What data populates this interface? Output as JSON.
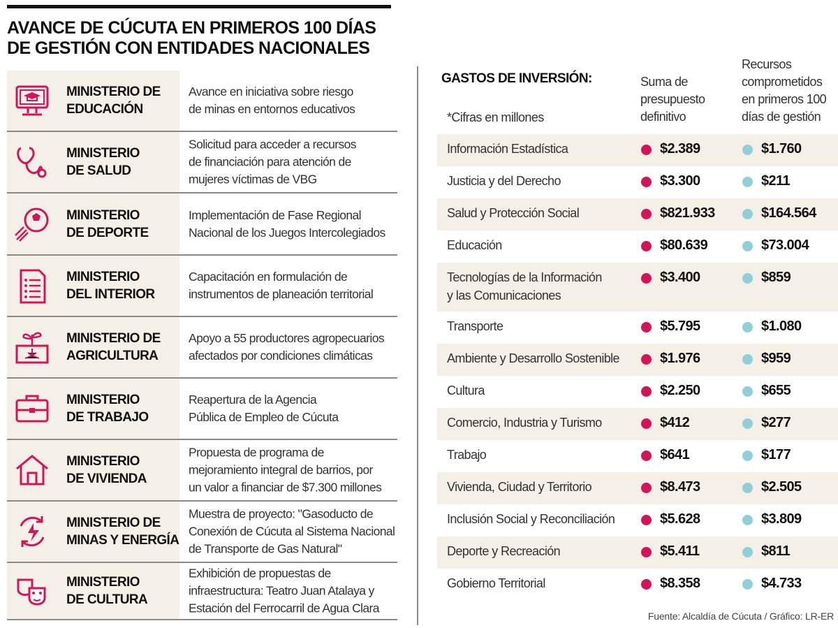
{
  "title": "AVANCE DE CÚCUTA EN PRIMEROS 100 DÍAS\nDE GESTIÓN CON ENTIDADES NACIONALES",
  "colors": {
    "accent": "#d4145a",
    "teal": "#8fd0d8",
    "shade": "#f4efe7"
  },
  "ministries": [
    {
      "icon": "computer-graduation-icon",
      "name": "MINISTERIO DE\nEDUCACIÓN",
      "desc": "Avance en iniciativa sobre riesgo\nde minas en entornos educativos"
    },
    {
      "icon": "stethoscope-icon",
      "name": "MINISTERIO\nDE SALUD",
      "desc": "Solicitud para acceder a recursos\nde financiación para atención de\nmujeres víctimas de VBG"
    },
    {
      "icon": "soccer-ball-icon",
      "name": "MINISTERIO\nDE DEPORTE",
      "desc": "Implementación de Fase Regional\nNacional de los Juegos Intercolegiados"
    },
    {
      "icon": "document-list-icon",
      "name": "MINISTERIO\nDEL INTERIOR",
      "desc": "Capacitación en formulación de\ninstrumentos de planeación territorial"
    },
    {
      "icon": "plant-sprout-icon",
      "name": "MINISTERIO  DE\nAGRICULTURA",
      "desc": "Apoyo a 55 productores agropecuarios\nafectados por condiciones climáticas"
    },
    {
      "icon": "briefcase-icon",
      "name": "MINISTERIO\nDE TRABAJO",
      "desc": "Reapertura de la Agencia\nPública de Empleo de Cúcuta"
    },
    {
      "icon": "house-icon",
      "name": "MINISTERIO\nDE VIVIENDA",
      "desc": "Propuesta de programa de\nmejoramiento integral de barrios, por\nun valor a financiar de $7.300 millones"
    },
    {
      "icon": "energy-cycle-icon",
      "name": "MINISTERIO DE\nMINAS Y ENERGÍA",
      "desc": "Muestra de proyecto: \"Gasoducto de\nConexión de Cúcuta al Sistema Nacional\nde Transporte de Gas Natural\""
    },
    {
      "icon": "theater-masks-icon",
      "name": "MINISTERIO\nDE CULTURA",
      "desc": "Exhibición de propuestas de\ninfraestructura: Teatro Juan Atalaya y\nEstación del Ferrocarril de Agua Clara"
    }
  ],
  "chart_data": {
    "type": "table",
    "title": "GASTOS DE INVERSIÓN:",
    "note": "*Cifras en millones",
    "columns": [
      "Suma de\npresupuesto\ndefinitivo",
      "Recursos\ncomprometidos\nen primeros 100\ndías de gestión"
    ],
    "rows": [
      {
        "category": "Información Estadística",
        "budget": "$2.389",
        "committed": "$1.760"
      },
      {
        "category": "Justicia y del Derecho",
        "budget": "$3.300",
        "committed": "$211"
      },
      {
        "category": "Salud y Protección Social",
        "budget": "$821.933",
        "committed": "$164.564"
      },
      {
        "category": "Educación",
        "budget": "$80.639",
        "committed": "$73.004"
      },
      {
        "category": "Tecnologías de la Información\ny las Comunicaciones",
        "budget": "$3.400",
        "committed": "$859"
      },
      {
        "category": "Transporte",
        "budget": "$5.795",
        "committed": "$1.080"
      },
      {
        "category": "Ambiente y Desarrollo Sostenible",
        "budget": "$1.976",
        "committed": "$959"
      },
      {
        "category": "Cultura",
        "budget": "$2.250",
        "committed": "$655"
      },
      {
        "category": "Comercio, Industria y Turismo",
        "budget": "$412",
        "committed": "$277"
      },
      {
        "category": "Trabajo",
        "budget": "$641",
        "committed": "$177"
      },
      {
        "category": "Vivienda, Ciudad y Territorio",
        "budget": "$8.473",
        "committed": "$2.505"
      },
      {
        "category": "Inclusión Social y Reconciliación",
        "budget": "$5.628",
        "committed": "$3.809"
      },
      {
        "category": "Deporte y Recreación",
        "budget": "$5.411",
        "committed": "$811"
      },
      {
        "category": "Gobierno Territorial",
        "budget": "$8.358",
        "committed": "$4.733"
      }
    ]
  },
  "source": "Fuente: Alcaldía de Cúcuta / Gráfico: LR-ER"
}
